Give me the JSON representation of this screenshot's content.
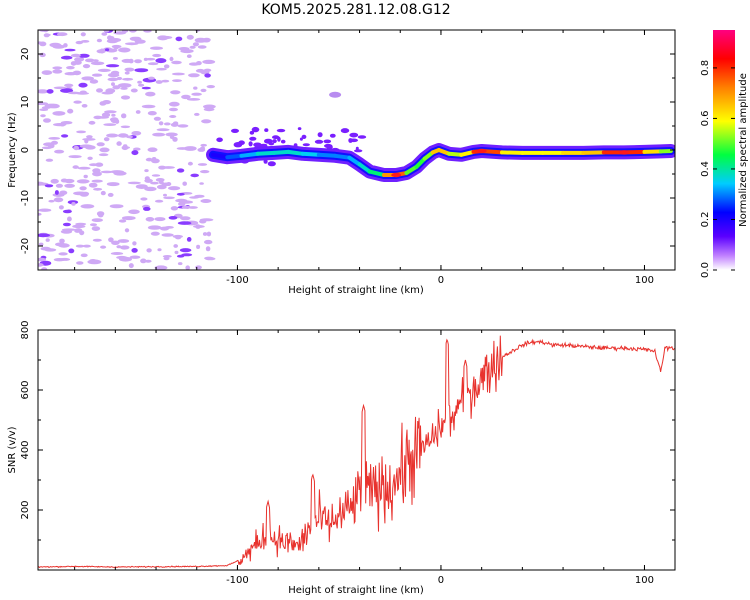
{
  "figure_title": "KOM5.2025.281.12.08.G12",
  "chart_data": [
    {
      "type": "heatmap",
      "name": "spectrogram",
      "xlabel": "Height of straight line (km)",
      "ylabel": "Frequency (Hz)",
      "xlim": [
        -198,
        115
      ],
      "ylim": [
        -25,
        25
      ],
      "xticks": [
        -100,
        0,
        100
      ],
      "yticks": [
        -20,
        -10,
        0,
        10,
        20
      ],
      "colorbar": {
        "label": "Normalized spectral amplitude",
        "range": [
          0.0,
          0.95
        ],
        "ticks": [
          "0.0",
          "0.2",
          "0.4",
          "0.6",
          "0.8"
        ]
      },
      "track": [
        {
          "x": -112,
          "f": -1.0,
          "a": 0.15
        },
        {
          "x": -105,
          "f": -1.5,
          "a": 0.25
        },
        {
          "x": -98,
          "f": -1.2,
          "a": 0.3
        },
        {
          "x": -90,
          "f": -0.8,
          "a": 0.35
        },
        {
          "x": -82,
          "f": -0.6,
          "a": 0.4
        },
        {
          "x": -75,
          "f": -0.4,
          "a": 0.35
        },
        {
          "x": -68,
          "f": -0.8,
          "a": 0.4
        },
        {
          "x": -60,
          "f": -1.0,
          "a": 0.3
        },
        {
          "x": -52,
          "f": -1.2,
          "a": 0.3
        },
        {
          "x": -45,
          "f": -1.6,
          "a": 0.3
        },
        {
          "x": -40,
          "f": -3.0,
          "a": 0.35
        },
        {
          "x": -35,
          "f": -4.5,
          "a": 0.4
        },
        {
          "x": -28,
          "f": -5.2,
          "a": 0.45
        },
        {
          "x": -22,
          "f": -5.2,
          "a": 0.95
        },
        {
          "x": -17,
          "f": -4.8,
          "a": 0.55
        },
        {
          "x": -12,
          "f": -3.5,
          "a": 0.45
        },
        {
          "x": -8,
          "f": -1.8,
          "a": 0.5
        },
        {
          "x": -4,
          "f": -0.5,
          "a": 0.55
        },
        {
          "x": -1,
          "f": 0.0,
          "a": 0.75
        },
        {
          "x": 4,
          "f": -0.8,
          "a": 0.55
        },
        {
          "x": 10,
          "f": -1.0,
          "a": 0.55
        },
        {
          "x": 16,
          "f": -0.4,
          "a": 0.65
        },
        {
          "x": 20,
          "f": -0.2,
          "a": 0.95
        },
        {
          "x": 30,
          "f": -0.5,
          "a": 0.6
        },
        {
          "x": 40,
          "f": -0.6,
          "a": 0.6
        },
        {
          "x": 50,
          "f": -0.6,
          "a": 0.58
        },
        {
          "x": 60,
          "f": -0.6,
          "a": 0.6
        },
        {
          "x": 70,
          "f": -0.6,
          "a": 0.65
        },
        {
          "x": 80,
          "f": -0.5,
          "a": 0.65
        },
        {
          "x": 90,
          "f": -0.5,
          "a": 0.95
        },
        {
          "x": 100,
          "f": -0.4,
          "a": 0.65
        },
        {
          "x": 108,
          "f": -0.3,
          "a": 0.6
        },
        {
          "x": 113,
          "f": -0.2,
          "a": 0.45
        }
      ]
    },
    {
      "type": "line",
      "name": "snr",
      "xlabel": "Height of straight line (km)",
      "ylabel": "SNR (v/v)",
      "xlim": [
        -198,
        115
      ],
      "ylim": [
        0,
        800
      ],
      "xticks": [
        -100,
        0,
        100
      ],
      "yticks": [
        200,
        400,
        600,
        800
      ],
      "color": "#e8322d",
      "series": [
        {
          "name": "SNR",
          "x": [
            -198,
            -180,
            -160,
            -140,
            -120,
            -105,
            -100,
            -95,
            -90,
            -85,
            -80,
            -75,
            -70,
            -65,
            -60,
            -55,
            -50,
            -45,
            -40,
            -35,
            -30,
            -25,
            -20,
            -15,
            -10,
            -5,
            0,
            5,
            10,
            15,
            20,
            25,
            30,
            35,
            40,
            45,
            50,
            55,
            60,
            70,
            80,
            90,
            100,
            105,
            108,
            110,
            115
          ],
          "y": [
            10,
            12,
            10,
            11,
            12,
            15,
            30,
            55,
            90,
            120,
            100,
            90,
            80,
            130,
            170,
            150,
            180,
            200,
            250,
            260,
            270,
            280,
            320,
            370,
            400,
            430,
            480,
            500,
            560,
            600,
            640,
            680,
            710,
            730,
            750,
            760,
            760,
            750,
            750,
            745,
            740,
            740,
            735,
            730,
            660,
            740,
            740
          ]
        }
      ],
      "peaks": [
        {
          "x": -85,
          "y": 230
        },
        {
          "x": -63,
          "y": 320
        },
        {
          "x": -38,
          "y": 550
        },
        {
          "x": 3,
          "y": 770
        },
        {
          "x": 12,
          "y": 700
        }
      ]
    }
  ]
}
